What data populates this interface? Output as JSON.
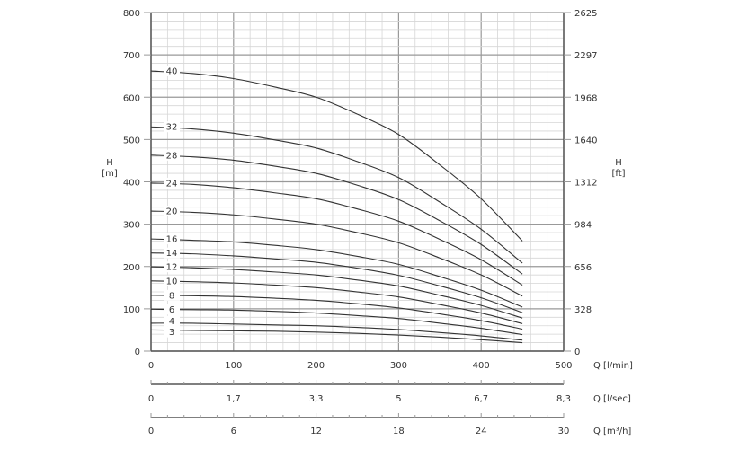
{
  "chart_data": {
    "type": "line",
    "x_axes": [
      {
        "label": "Q [l/min]",
        "range": [
          0,
          500
        ],
        "tick_labels": [
          "0",
          "100",
          "200",
          "300",
          "400",
          "500"
        ]
      },
      {
        "label": "Q [l/sec]",
        "tick_labels": [
          "0",
          "1,7",
          "3,3",
          "5",
          "6,7",
          "8,3"
        ]
      },
      {
        "label": "Q [m³/h]",
        "tick_labels": [
          "0",
          "6",
          "12",
          "18",
          "24",
          "30"
        ]
      }
    ],
    "y_left": {
      "label_top": "H",
      "label_bottom": "[m]",
      "range": [
        0,
        800
      ],
      "tick_labels": [
        "0",
        "100",
        "200",
        "300",
        "400",
        "500",
        "600",
        "700",
        "800"
      ]
    },
    "y_right": {
      "label_top": "H",
      "label_bottom": "[ft]",
      "tick_labels": [
        "0",
        "328",
        "656",
        "984",
        "1312",
        "1640",
        "1968",
        "2297",
        "2625"
      ]
    },
    "grid": true,
    "colors": {
      "curve": "#333333",
      "grid_major": "#999999",
      "grid_minor": "#d6d6d6"
    },
    "x": [
      0,
      50,
      100,
      150,
      200,
      250,
      300,
      350,
      400,
      450
    ],
    "series": [
      {
        "name": "3",
        "values": [
          50,
          49,
          48,
          47,
          45,
          42,
          38,
          33,
          27,
          20
        ]
      },
      {
        "name": "4",
        "values": [
          66,
          66,
          64,
          62,
          60,
          56,
          51,
          44,
          36,
          26
        ]
      },
      {
        "name": "6",
        "values": [
          99,
          98,
          97,
          94,
          90,
          84,
          77,
          66,
          54,
          39
        ]
      },
      {
        "name": "8",
        "values": [
          132,
          131,
          129,
          125,
          120,
          112,
          102,
          88,
          72,
          52
        ]
      },
      {
        "name": "10",
        "values": [
          166,
          164,
          161,
          156,
          150,
          140,
          128,
          110,
          90,
          65
        ]
      },
      {
        "name": "12",
        "values": [
          199,
          197,
          193,
          187,
          180,
          168,
          154,
          132,
          108,
          78
        ]
      },
      {
        "name": "14",
        "values": [
          232,
          230,
          225,
          218,
          210,
          196,
          179,
          154,
          126,
          91
        ]
      },
      {
        "name": "16",
        "values": [
          265,
          262,
          258,
          250,
          240,
          224,
          205,
          176,
          144,
          104
        ]
      },
      {
        "name": "20",
        "values": [
          331,
          328,
          322,
          312,
          300,
          280,
          256,
          220,
          180,
          130
        ]
      },
      {
        "name": "24",
        "values": [
          397,
          394,
          386,
          374,
          360,
          336,
          307,
          264,
          216,
          156
        ]
      },
      {
        "name": "28",
        "values": [
          463,
          459,
          451,
          437,
          420,
          392,
          358,
          308,
          252,
          182
        ]
      },
      {
        "name": "32",
        "values": [
          530,
          525,
          515,
          499,
          480,
          448,
          410,
          352,
          288,
          208
        ]
      },
      {
        "name": "40",
        "values": [
          662,
          656,
          644,
          624,
          600,
          560,
          512,
          440,
          360,
          260
        ]
      }
    ]
  }
}
